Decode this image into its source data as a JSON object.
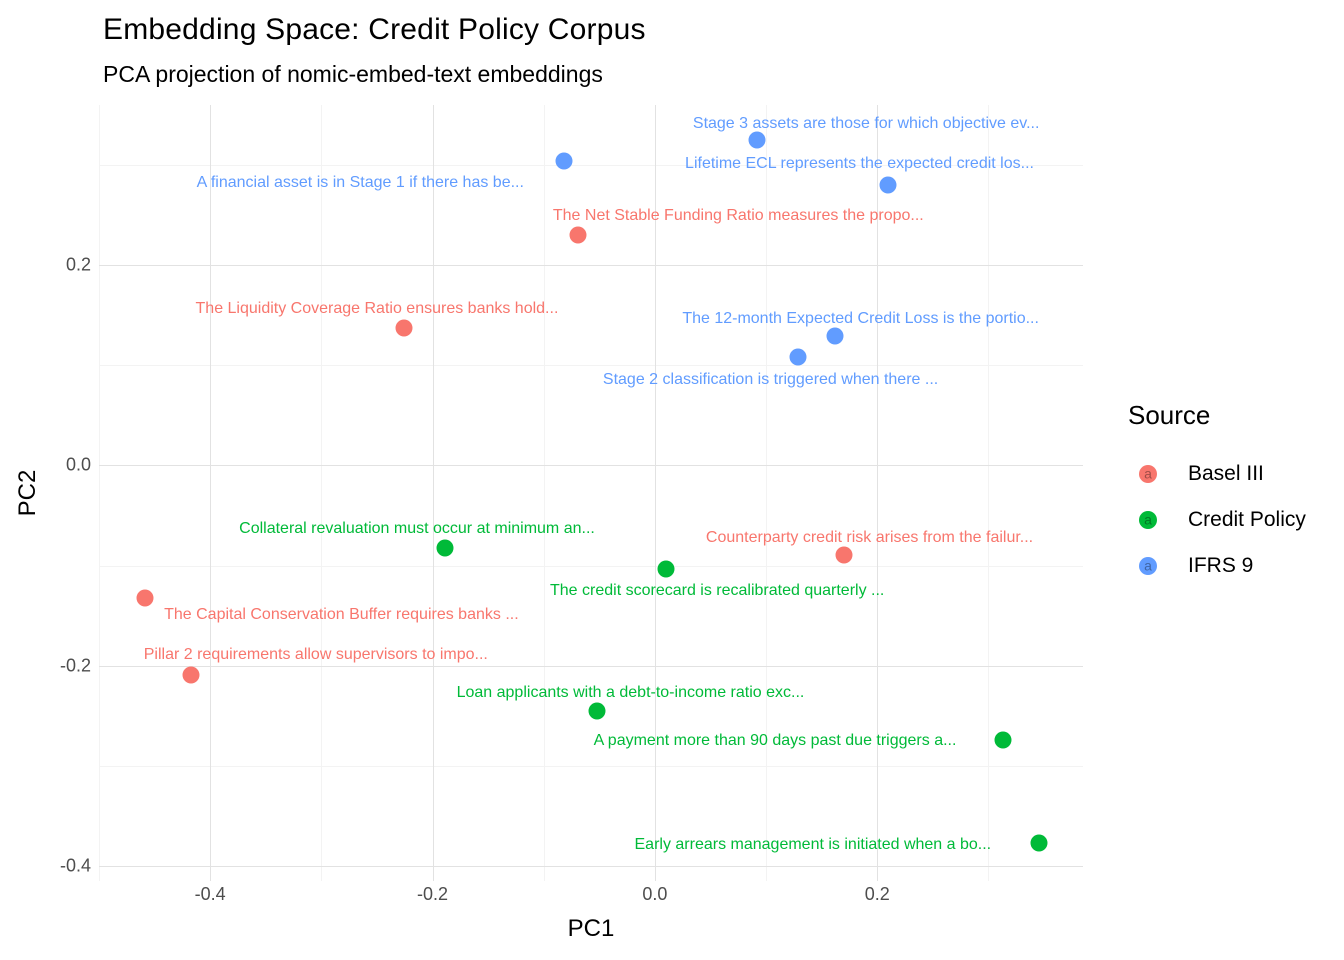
{
  "title": "Embedding Space: Credit Policy Corpus",
  "subtitle": "PCA projection of nomic-embed-text embeddings",
  "chart_data": {
    "type": "scatter",
    "title": "Embedding Space: Credit Policy Corpus",
    "subtitle": "PCA projection of nomic-embed-text embeddings",
    "xlabel": "PC1",
    "ylabel": "PC2",
    "xlim": [
      -0.5,
      0.385
    ],
    "ylim": [
      -0.415,
      0.36
    ],
    "grid": true,
    "x_ticks": [
      {
        "v": -0.4,
        "label": "-0.4"
      },
      {
        "v": -0.2,
        "label": "-0.2"
      },
      {
        "v": 0.0,
        "label": "0.0"
      },
      {
        "v": 0.2,
        "label": "0.2"
      }
    ],
    "y_ticks": [
      {
        "v": 0.2,
        "label": "0.2"
      },
      {
        "v": 0.0,
        "label": "0.0"
      },
      {
        "v": -0.2,
        "label": "-0.2"
      },
      {
        "v": -0.4,
        "label": "-0.4"
      }
    ],
    "x_minor": [
      -0.5,
      -0.3,
      -0.1,
      0.1,
      0.3
    ],
    "y_minor": [
      0.3,
      0.1,
      -0.1,
      -0.3
    ],
    "legend": {
      "title": "Source",
      "position": "right",
      "entries": [
        {
          "label": "Basel III",
          "color": "#F8766D"
        },
        {
          "label": "Credit Policy",
          "color": "#00BA38"
        },
        {
          "label": "IFRS 9",
          "color": "#619CFF"
        }
      ]
    },
    "series_colors": {
      "Basel III": "#F8766D",
      "Credit Policy": "#00BA38",
      "IFRS 9": "#619CFF"
    },
    "points": [
      {
        "source": "IFRS 9",
        "pc1": 0.092,
        "pc2": 0.325,
        "label": "Stage 3 assets are those for which objective ev...",
        "label_pc1": 0.19,
        "label_pc2": 0.341
      },
      {
        "source": "IFRS 9",
        "pc1": -0.082,
        "pc2": 0.304,
        "label": "A financial asset is in Stage 1 if there has be...",
        "label_pc1": -0.265,
        "label_pc2": 0.282
      },
      {
        "source": "IFRS 9",
        "pc1": 0.21,
        "pc2": 0.28,
        "label": "Lifetime ECL represents the expected credit los...",
        "label_pc1": 0.184,
        "label_pc2": 0.301
      },
      {
        "source": "Basel III",
        "pc1": -0.069,
        "pc2": 0.23,
        "label": "The Net Stable Funding Ratio measures the propo...",
        "label_pc1": 0.075,
        "label_pc2": 0.249
      },
      {
        "source": "Basel III",
        "pc1": -0.226,
        "pc2": 0.137,
        "label": "The Liquidity Coverage Ratio ensures banks hold...",
        "label_pc1": -0.25,
        "label_pc2": 0.156
      },
      {
        "source": "IFRS 9",
        "pc1": 0.162,
        "pc2": 0.129,
        "label": "The 12-month Expected Credit Loss is the portio...",
        "label_pc1": 0.185,
        "label_pc2": 0.146
      },
      {
        "source": "IFRS 9",
        "pc1": 0.129,
        "pc2": 0.108,
        "label": "Stage 2 classification is triggered when there ...",
        "label_pc1": 0.104,
        "label_pc2": 0.085
      },
      {
        "source": "Credit Policy",
        "pc1": -0.189,
        "pc2": -0.082,
        "label": "Collateral revaluation must occur at minimum an...",
        "label_pc1": -0.214,
        "label_pc2": -0.063
      },
      {
        "source": "Basel III",
        "pc1": 0.17,
        "pc2": -0.089,
        "label": "Counterparty credit risk arises from the failur...",
        "label_pc1": 0.193,
        "label_pc2": -0.072
      },
      {
        "source": "Credit Policy",
        "pc1": 0.01,
        "pc2": -0.103,
        "label": "The credit scorecard is recalibrated quarterly ...",
        "label_pc1": 0.056,
        "label_pc2": -0.125
      },
      {
        "source": "Basel III",
        "pc1": -0.459,
        "pc2": -0.132,
        "label": "The Capital Conservation Buffer requires banks ...",
        "label_pc1": -0.282,
        "label_pc2": -0.149
      },
      {
        "source": "Basel III",
        "pc1": -0.417,
        "pc2": -0.209,
        "label": "Pillar 2 requirements allow supervisors to impo...",
        "label_pc1": -0.305,
        "label_pc2": -0.189
      },
      {
        "source": "Credit Policy",
        "pc1": -0.052,
        "pc2": -0.245,
        "label": "Loan applicants with a debt-to-income ratio exc...",
        "label_pc1": -0.022,
        "label_pc2": -0.227
      },
      {
        "source": "Credit Policy",
        "pc1": 0.313,
        "pc2": -0.274,
        "label": "A payment more than 90 days past due triggers a...",
        "label_pc1": 0.108,
        "label_pc2": -0.275
      },
      {
        "source": "Credit Policy",
        "pc1": 0.345,
        "pc2": -0.377,
        "label": "Early arrears management is initiated when a bo...",
        "label_pc1": 0.142,
        "label_pc2": -0.379
      }
    ]
  }
}
